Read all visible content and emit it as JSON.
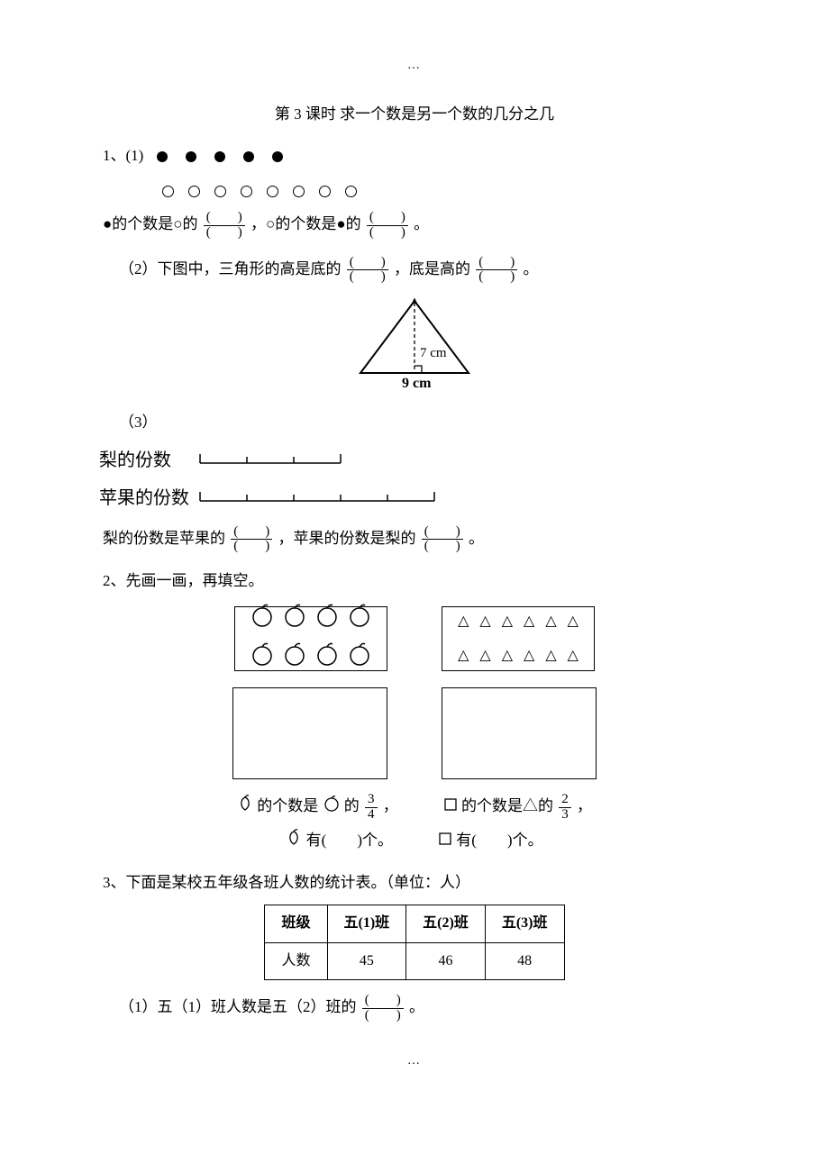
{
  "header_dots": "…",
  "footer_dots": "…",
  "title": "第 3 课时  求一个数是另一个数的几分之几",
  "q1": {
    "label": "1、(1)",
    "filled_count": 5,
    "open_count": 8,
    "line1_a": "●的个数是○的",
    "line1_b": "，○的个数是●的",
    "line1_end": "。",
    "part2_label": "（2）下图中，三角形的高是底的",
    "part2_mid": "，底是高的",
    "part2_end": "。",
    "tri_height": "7 cm",
    "tri_base": "9 cm",
    "part3_label": "（3）",
    "pear_label": "梨的份数",
    "apple_label": "苹果的份数",
    "pear_segments": 3,
    "apple_segments": 5,
    "segment_width": 52,
    "line3_a": "梨的份数是苹果的",
    "line3_b": "，苹果的份数是梨的",
    "line3_end": "。"
  },
  "blank_frac": {
    "num": "(  )",
    "den": "(  )"
  },
  "q2": {
    "label": "2、先画一画，再填空。",
    "apple_count": 8,
    "tri_count": 12,
    "l1a": "的个数是",
    "l1b": "的",
    "f1": {
      "num": "3",
      "den": "4"
    },
    "l1c": "，",
    "l2a": "的个数是△的",
    "f2": {
      "num": "2",
      "den": "3"
    },
    "l2c": "，",
    "l3a": "有(  )个。",
    "l4a": "有(  )个。"
  },
  "q3": {
    "label": "3、下面是某校五年级各班人数的统计表。（单位：人）",
    "headers": [
      "班级",
      "五(1)班",
      "五(2)班",
      "五(3)班"
    ],
    "row_label": "人数",
    "values": [
      "45",
      "46",
      "48"
    ],
    "sub1": "（1）五（1）班人数是五（2）班的",
    "sub1_end": "。"
  }
}
